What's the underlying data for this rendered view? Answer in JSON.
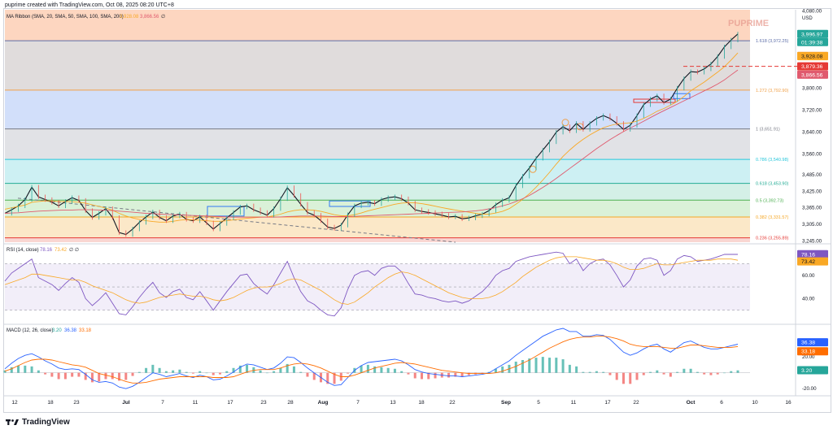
{
  "header_text": "puprime created with TradingView.com, Oct 08, 2025 08:20 UTC+8",
  "brand": "PUPRIME",
  "currency": "USD",
  "footer_logo": "TradingView",
  "colors": {
    "price_line": "#26a69a",
    "ma20": "#f9a825",
    "ma200": "#e05a6e",
    "rsi": "#7e57c2",
    "macd": "#2962ff",
    "signal": "#ff6d00",
    "hist_pos": "#26a69a",
    "hist_neg": "#ef5350"
  },
  "legends": {
    "ma": {
      "label": "MA Ribbon (SMA, 20, SMA, 50, SMA, 100, SMA, 200)",
      "v1": "3,928.08",
      "v2": "3,866.56",
      "tail": "∅"
    },
    "rsi": {
      "label": "RSI (14, close)",
      "v1": "78.16",
      "v2": "73.42",
      "tail": "∅ ∅"
    },
    "macd": {
      "label": "MACD (12, 26, close)",
      "v1": "3.20",
      "v2": "36.38",
      "v3": "33.18"
    }
  },
  "badges": {
    "price": "3,996.97",
    "countdown": "01:39:38",
    "ma20": "3,928.08",
    "ma_hidden": "3,917.29",
    "line_red": "3,879.36",
    "ma200": "3,866.56",
    "rsi1": "78.16",
    "rsi2": "73.42",
    "macd1": "36.38",
    "macd2": "33.18",
    "macd3": "3.20"
  },
  "chart_data": [
    {
      "type": "line",
      "title": "",
      "y_axis_ticks": [
        "4,080.00",
        "3,800.00",
        "3,720.00",
        "3,640.00",
        "3,560.00",
        "3,485.00",
        "3,425.00",
        "3,365.00",
        "3,305.00",
        "3,245.00"
      ],
      "x_axis_ticks": [
        "12",
        "18",
        "23",
        "Jul",
        "7",
        "11",
        "17",
        "23",
        "28",
        "Aug",
        "7",
        "13",
        "18",
        "22",
        "Sep",
        "5",
        "11",
        "17",
        "22",
        "Oct",
        "6",
        "10",
        "16"
      ],
      "fib_levels": [
        {
          "label": "1.618 (3,972.25)",
          "value": 3972.25
        },
        {
          "label": "1.272 (3,792.90)",
          "value": 3792.9
        },
        {
          "label": "1 (3,651.91)",
          "value": 3651.91
        },
        {
          "label": "0.786 (3,540.98)",
          "value": 3540.98
        },
        {
          "label": "0.618 (3,453.90)",
          "value": 3453.9
        },
        {
          "label": "0.5 (3,392.73)",
          "value": 3392.73
        },
        {
          "label": "0.382 (3,331.57)",
          "value": 3331.57
        },
        {
          "label": "0.236 (3,255.89)",
          "value": 3255.89
        }
      ],
      "ylim": [
        3240,
        4085
      ],
      "series": [
        {
          "name": "Price",
          "values": [
            3345,
            3358,
            3372,
            3395,
            3440,
            3405,
            3395,
            3385,
            3372,
            3388,
            3402,
            3392,
            3355,
            3330,
            3345,
            3362,
            3330,
            3275,
            3268,
            3288,
            3312,
            3332,
            3350,
            3330,
            3318,
            3335,
            3342,
            3323,
            3318,
            3332,
            3310,
            3288,
            3308,
            3328,
            3348,
            3368,
            3372,
            3358,
            3348,
            3338,
            3362,
            3398,
            3438,
            3410,
            3378,
            3348,
            3338,
            3318,
            3295,
            3290,
            3302,
            3340,
            3372,
            3382,
            3385,
            3380,
            3395,
            3402,
            3405,
            3398,
            3382,
            3358,
            3352,
            3348,
            3343,
            3338,
            3332,
            3334,
            3325,
            3328,
            3336,
            3342,
            3355,
            3376,
            3392,
            3402,
            3445,
            3480,
            3510,
            3545,
            3575,
            3605,
            3640,
            3660,
            3645,
            3672,
            3650,
            3672,
            3690,
            3700,
            3690,
            3672,
            3650,
            3665,
            3700,
            3740,
            3760,
            3772,
            3748,
            3760,
            3800,
            3835,
            3860,
            3858,
            3870,
            3888,
            3915,
            3950,
            3975,
            3997
          ]
        },
        {
          "name": "MA20",
          "values": [
            3360,
            3365,
            3370,
            3375,
            3385,
            3388,
            3390,
            3390,
            3388,
            3388,
            3387,
            3385,
            3382,
            3376,
            3370,
            3364,
            3356,
            3345,
            3335,
            3328,
            3323,
            3318,
            3315,
            3313,
            3313,
            3316,
            3320,
            3322,
            3321,
            3320,
            3318,
            3316,
            3316,
            3318,
            3321,
            3324,
            3327,
            3329,
            3331,
            3332,
            3336,
            3342,
            3350,
            3355,
            3358,
            3358,
            3356,
            3352,
            3346,
            3340,
            3336,
            3336,
            3340,
            3346,
            3354,
            3360,
            3366,
            3372,
            3378,
            3382,
            3384,
            3383,
            3380,
            3376,
            3371,
            3366,
            3361,
            3357,
            3353,
            3349,
            3345,
            3342,
            3342,
            3346,
            3352,
            3362,
            3378,
            3396,
            3416,
            3440,
            3466,
            3494,
            3524,
            3552,
            3575,
            3596,
            3614,
            3630,
            3644,
            3656,
            3664,
            3670,
            3672,
            3674,
            3680,
            3690,
            3702,
            3716,
            3726,
            3738,
            3752,
            3770,
            3790,
            3806,
            3822,
            3840,
            3858,
            3878,
            3902,
            3928
          ]
        },
        {
          "name": "MA200",
          "values": [
            3345,
            3346,
            3347,
            3349,
            3351,
            3353,
            3354,
            3355,
            3356,
            3357,
            3357,
            3358,
            3358,
            3358,
            3357,
            3356,
            3355,
            3353,
            3351,
            3349,
            3347,
            3345,
            3344,
            3342,
            3341,
            3340,
            3339,
            3338,
            3337,
            3336,
            3335,
            3334,
            3333,
            3332,
            3331,
            3331,
            3331,
            3331,
            3331,
            3331,
            3331,
            3332,
            3333,
            3334,
            3335,
            3335,
            3335,
            3335,
            3334,
            3333,
            3333,
            3333,
            3334,
            3335,
            3336,
            3337,
            3338,
            3339,
            3340,
            3341,
            3342,
            3343,
            3344,
            3345,
            3346,
            3347,
            3348,
            3349,
            3350,
            3352,
            3354,
            3357,
            3361,
            3366,
            3372,
            3379,
            3388,
            3398,
            3410,
            3424,
            3439,
            3455,
            3472,
            3490,
            3508,
            3526,
            3544,
            3562,
            3580,
            3597,
            3613,
            3628,
            3642,
            3655,
            3667,
            3680,
            3693,
            3706,
            3718,
            3730,
            3742,
            3754,
            3766,
            3778,
            3790,
            3802,
            3815,
            3830,
            3848,
            3866
          ]
        }
      ]
    },
    {
      "type": "line",
      "title": "RSI (14, close)",
      "y_axis_ticks": [
        "60.00",
        "40.00"
      ],
      "ylim": [
        20,
        85
      ],
      "series": [
        {
          "name": "RSI",
          "values": [
            55,
            62,
            66,
            70,
            74,
            58,
            55,
            52,
            47,
            53,
            58,
            54,
            40,
            34,
            39,
            45,
            36,
            27,
            26,
            33,
            41,
            48,
            54,
            45,
            41,
            46,
            48,
            41,
            39,
            46,
            38,
            30,
            38,
            46,
            53,
            60,
            61,
            53,
            48,
            44,
            52,
            62,
            72,
            58,
            46,
            38,
            35,
            30,
            26,
            25,
            32,
            48,
            60,
            63,
            64,
            60,
            66,
            68,
            68,
            63,
            53,
            44,
            43,
            41,
            40,
            38,
            37,
            38,
            36,
            38,
            42,
            46,
            52,
            60,
            64,
            66,
            72,
            74,
            76,
            77,
            78,
            79,
            80,
            79,
            70,
            74,
            64,
            70,
            73,
            74,
            69,
            60,
            50,
            56,
            68,
            74,
            75,
            73,
            60,
            64,
            74,
            77,
            76,
            72,
            73,
            74,
            76,
            78,
            78,
            78
          ]
        },
        {
          "name": "RSI MA",
          "values": [
            52,
            54,
            56,
            58,
            61,
            61,
            60,
            59,
            58,
            57,
            56,
            56,
            54,
            51,
            49,
            47,
            45,
            42,
            39,
            37,
            36,
            37,
            39,
            41,
            42,
            43,
            44,
            43,
            42,
            42,
            41,
            39,
            38,
            39,
            41,
            44,
            47,
            49,
            50,
            50,
            51,
            53,
            56,
            57,
            56,
            53,
            50,
            47,
            43,
            39,
            36,
            35,
            37,
            41,
            45,
            50,
            54,
            58,
            61,
            63,
            62,
            60,
            57,
            54,
            51,
            48,
            45,
            43,
            41,
            40,
            40,
            40,
            41,
            43,
            46,
            50,
            54,
            59,
            63,
            67,
            70,
            73,
            75,
            76,
            76,
            76,
            75,
            74,
            73,
            73,
            72,
            70,
            67,
            65,
            65,
            66,
            68,
            70,
            69,
            69,
            70,
            71,
            72,
            73,
            73,
            73,
            74,
            74,
            74,
            73
          ]
        }
      ]
    },
    {
      "type": "line",
      "title": "MACD (12, 26, close)",
      "y_axis_ticks": [
        "20.00",
        "-20.00"
      ],
      "ylim": [
        -28,
        58
      ],
      "series": [
        {
          "name": "MACD",
          "values": [
            5,
            12,
            18,
            22,
            24,
            20,
            15,
            11,
            6,
            4,
            5,
            4,
            -2,
            -9,
            -12,
            -11,
            -13,
            -18,
            -20,
            -17,
            -12,
            -6,
            0,
            -2,
            -5,
            -3,
            -1,
            -4,
            -6,
            -3,
            -5,
            -9,
            -8,
            -4,
            1,
            7,
            11,
            10,
            7,
            4,
            6,
            12,
            20,
            19,
            13,
            6,
            0,
            -6,
            -12,
            -16,
            -15,
            -6,
            3,
            9,
            13,
            14,
            15,
            16,
            17,
            15,
            10,
            4,
            1,
            -1,
            -2,
            -3,
            -4,
            -4,
            -5,
            -4,
            -3,
            -2,
            0,
            5,
            10,
            15,
            22,
            28,
            34,
            40,
            46,
            50,
            54,
            56,
            52,
            52,
            46,
            46,
            48,
            47,
            42,
            34,
            26,
            22,
            25,
            30,
            34,
            36,
            30,
            26,
            32,
            38,
            40,
            36,
            32,
            30,
            30,
            32,
            34,
            36
          ]
        },
        {
          "name": "Signal",
          "values": [
            2,
            5,
            9,
            13,
            16,
            17,
            17,
            16,
            14,
            12,
            10,
            9,
            7,
            3,
            -1,
            -3,
            -5,
            -8,
            -11,
            -13,
            -13,
            -12,
            -10,
            -8,
            -7,
            -6,
            -5,
            -5,
            -5,
            -5,
            -5,
            -6,
            -6,
            -6,
            -5,
            -2,
            1,
            3,
            4,
            4,
            4,
            6,
            9,
            11,
            12,
            11,
            9,
            6,
            2,
            -2,
            -5,
            -5,
            -3,
            0,
            3,
            6,
            8,
            10,
            12,
            13,
            12,
            11,
            9,
            7,
            5,
            3,
            2,
            1,
            0,
            -1,
            -1,
            -1,
            -1,
            0,
            2,
            5,
            8,
            12,
            16,
            21,
            26,
            31,
            35,
            39,
            42,
            44,
            45,
            45,
            46,
            46,
            45,
            43,
            40,
            36,
            34,
            33,
            33,
            33,
            32,
            31,
            31,
            33,
            35,
            35,
            34,
            33,
            32,
            32,
            32,
            33
          ]
        }
      ]
    }
  ]
}
